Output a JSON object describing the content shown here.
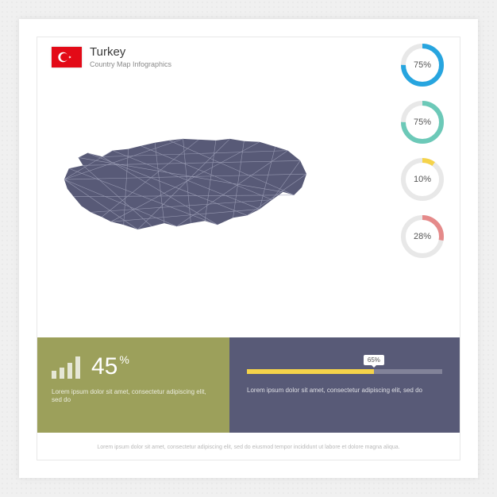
{
  "header": {
    "title": "Turkey",
    "subtitle": "Country Map Infographics",
    "flag": {
      "bg": "#e30a17",
      "fg": "#ffffff"
    }
  },
  "map": {
    "fill": "#585a77",
    "mesh": "#9ea0b8"
  },
  "donuts": [
    {
      "percent": 75,
      "color": "#27a5df",
      "track": "#e8e8e8",
      "label": "75%"
    },
    {
      "percent": 75,
      "color": "#6cc9b8",
      "track": "#e8e8e8",
      "label": "75%"
    },
    {
      "percent": 10,
      "color": "#f5d34a",
      "track": "#e8e8e8",
      "label": "10%"
    },
    {
      "percent": 28,
      "color": "#e58a8a",
      "track": "#e8e8e8",
      "label": "28%"
    }
  ],
  "footer_left": {
    "bg": "#9ca05b",
    "percent_value": "45",
    "percent_symbol": "%",
    "bars": [
      10,
      14,
      20,
      28
    ],
    "lorem": "Lorem ipsum dolor sit amet, consectetur adipiscing elit, sed do"
  },
  "footer_right": {
    "bg": "#585a77",
    "progress": {
      "percent": 65,
      "label": "65%",
      "fill": "#f5d34a"
    },
    "lorem": "Lorem ipsum dolor sit amet, consectetur adipiscing elit, sed do"
  },
  "footer_caption": "Lorem ipsum dolor sit amet, consectetur adipiscing elit, sed do eiusmod tempor incididunt ut labore et dolore magna aliqua."
}
